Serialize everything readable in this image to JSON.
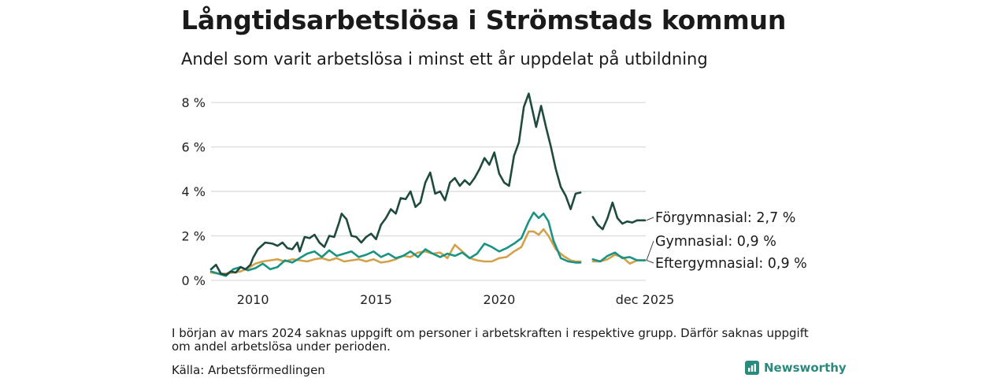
{
  "title": "Långtidsarbetslösa i Strömstads kommun",
  "subtitle": "Andel som varit arbetslösa i minst ett år uppdelat på utbildning",
  "footnote": "I början av mars 2024 saknas uppgift om personer i arbetskraften i respektive grupp. Därför saknas uppgift om andel arbetslösa under perioden.",
  "source": "Källa: Arbetsförmedlingen",
  "brand": "Newsworthy",
  "colors": {
    "forgymnasial": "#1f4a40",
    "gymnasial": "#1a9384",
    "eftergymnasial": "#d3a14a",
    "grid": "#dcdcdc",
    "brand": "#2a8a7c"
  },
  "chart_data": {
    "type": "line",
    "xlim": [
      2008.3,
      2025.95
    ],
    "ylim": [
      0,
      8.5
    ],
    "yticks": [
      0,
      2,
      4,
      6,
      8
    ],
    "ytick_labels": [
      "0 %",
      "2 %",
      "4 %",
      "6 %",
      "8 %"
    ],
    "xticks": [
      2010,
      2015,
      2020,
      2025.92
    ],
    "xtick_labels": [
      "2010",
      "2015",
      "2020",
      "dec 2025"
    ],
    "grid": true,
    "series": [
      {
        "name": "Förgymnasial",
        "label": "Förgymnasial: 2,7 %",
        "color": "#1f4a40",
        "points": [
          [
            2008.3,
            0.5
          ],
          [
            2008.5,
            0.7
          ],
          [
            2008.7,
            0.3
          ],
          [
            2008.9,
            0.25
          ],
          [
            2009.1,
            0.4
          ],
          [
            2009.3,
            0.35
          ],
          [
            2009.5,
            0.6
          ],
          [
            2009.7,
            0.5
          ],
          [
            2009.9,
            0.7
          ],
          [
            2010.0,
            1.0
          ],
          [
            2010.2,
            1.4
          ],
          [
            2010.5,
            1.7
          ],
          [
            2010.8,
            1.65
          ],
          [
            2011.0,
            1.55
          ],
          [
            2011.2,
            1.7
          ],
          [
            2011.4,
            1.45
          ],
          [
            2011.6,
            1.4
          ],
          [
            2011.8,
            1.7
          ],
          [
            2011.9,
            1.3
          ],
          [
            2012.1,
            1.95
          ],
          [
            2012.3,
            1.9
          ],
          [
            2012.5,
            2.05
          ],
          [
            2012.7,
            1.7
          ],
          [
            2012.9,
            1.5
          ],
          [
            2013.1,
            2.0
          ],
          [
            2013.3,
            1.95
          ],
          [
            2013.5,
            2.6
          ],
          [
            2013.6,
            3.0
          ],
          [
            2013.8,
            2.75
          ],
          [
            2014.0,
            2.0
          ],
          [
            2014.2,
            1.95
          ],
          [
            2014.4,
            1.7
          ],
          [
            2014.6,
            1.95
          ],
          [
            2014.8,
            2.1
          ],
          [
            2015.0,
            1.85
          ],
          [
            2015.2,
            2.5
          ],
          [
            2015.4,
            2.8
          ],
          [
            2015.6,
            3.2
          ],
          [
            2015.8,
            3.0
          ],
          [
            2016.0,
            3.7
          ],
          [
            2016.2,
            3.65
          ],
          [
            2016.4,
            4.0
          ],
          [
            2016.6,
            3.3
          ],
          [
            2016.8,
            3.5
          ],
          [
            2017.0,
            4.4
          ],
          [
            2017.2,
            4.85
          ],
          [
            2017.4,
            3.9
          ],
          [
            2017.6,
            4.0
          ],
          [
            2017.8,
            3.6
          ],
          [
            2018.0,
            4.4
          ],
          [
            2018.2,
            4.6
          ],
          [
            2018.4,
            4.25
          ],
          [
            2018.6,
            4.5
          ],
          [
            2018.8,
            4.3
          ],
          [
            2019.0,
            4.6
          ],
          [
            2019.2,
            5.0
          ],
          [
            2019.4,
            5.5
          ],
          [
            2019.6,
            5.2
          ],
          [
            2019.8,
            5.75
          ],
          [
            2020.0,
            4.8
          ],
          [
            2020.2,
            4.4
          ],
          [
            2020.4,
            4.25
          ],
          [
            2020.6,
            5.6
          ],
          [
            2020.8,
            6.2
          ],
          [
            2021.0,
            7.8
          ],
          [
            2021.2,
            8.4
          ],
          [
            2021.4,
            7.4
          ],
          [
            2021.5,
            6.9
          ],
          [
            2021.7,
            7.85
          ],
          [
            2021.9,
            6.9
          ],
          [
            2022.1,
            6.0
          ],
          [
            2022.3,
            5.0
          ],
          [
            2022.5,
            4.2
          ],
          [
            2022.7,
            3.8
          ],
          [
            2022.9,
            3.2
          ],
          [
            2023.1,
            3.9
          ],
          [
            2023.3,
            3.95
          ],
          null,
          [
            2023.8,
            2.85
          ],
          [
            2024.0,
            2.5
          ],
          [
            2024.2,
            2.3
          ],
          [
            2024.4,
            2.8
          ],
          [
            2024.6,
            3.5
          ],
          [
            2024.8,
            2.8
          ],
          [
            2025.0,
            2.55
          ],
          [
            2025.2,
            2.65
          ],
          [
            2025.4,
            2.6
          ],
          [
            2025.6,
            2.7
          ],
          [
            2025.92,
            2.7
          ]
        ]
      },
      {
        "name": "Gymnasial",
        "label": "Gymnasial: 0,9 %",
        "color": "#1a9384",
        "points": [
          [
            2008.3,
            0.4
          ],
          [
            2008.6,
            0.3
          ],
          [
            2008.9,
            0.2
          ],
          [
            2009.2,
            0.5
          ],
          [
            2009.5,
            0.6
          ],
          [
            2009.8,
            0.45
          ],
          [
            2010.1,
            0.55
          ],
          [
            2010.4,
            0.75
          ],
          [
            2010.7,
            0.5
          ],
          [
            2011.0,
            0.6
          ],
          [
            2011.3,
            0.9
          ],
          [
            2011.6,
            0.8
          ],
          [
            2011.9,
            1.0
          ],
          [
            2012.2,
            1.2
          ],
          [
            2012.5,
            1.3
          ],
          [
            2012.8,
            1.05
          ],
          [
            2013.1,
            1.35
          ],
          [
            2013.4,
            1.1
          ],
          [
            2013.7,
            1.2
          ],
          [
            2014.0,
            1.3
          ],
          [
            2014.3,
            1.05
          ],
          [
            2014.6,
            1.15
          ],
          [
            2014.9,
            1.3
          ],
          [
            2015.2,
            1.05
          ],
          [
            2015.5,
            1.2
          ],
          [
            2015.8,
            1.0
          ],
          [
            2016.1,
            1.1
          ],
          [
            2016.4,
            1.3
          ],
          [
            2016.7,
            1.05
          ],
          [
            2017.0,
            1.4
          ],
          [
            2017.3,
            1.2
          ],
          [
            2017.6,
            1.05
          ],
          [
            2017.9,
            1.2
          ],
          [
            2018.2,
            1.1
          ],
          [
            2018.5,
            1.25
          ],
          [
            2018.8,
            1.0
          ],
          [
            2019.1,
            1.2
          ],
          [
            2019.4,
            1.65
          ],
          [
            2019.7,
            1.5
          ],
          [
            2020.0,
            1.3
          ],
          [
            2020.3,
            1.45
          ],
          [
            2020.6,
            1.65
          ],
          [
            2020.9,
            1.9
          ],
          [
            2021.2,
            2.65
          ],
          [
            2021.4,
            3.05
          ],
          [
            2021.6,
            2.8
          ],
          [
            2021.8,
            3.0
          ],
          [
            2022.0,
            2.65
          ],
          [
            2022.2,
            1.8
          ],
          [
            2022.5,
            1.0
          ],
          [
            2022.8,
            0.85
          ],
          [
            2023.1,
            0.8
          ],
          [
            2023.3,
            0.8
          ],
          null,
          [
            2023.8,
            0.95
          ],
          [
            2024.1,
            0.85
          ],
          [
            2024.4,
            1.1
          ],
          [
            2024.7,
            1.25
          ],
          [
            2025.0,
            1.0
          ],
          [
            2025.3,
            1.05
          ],
          [
            2025.6,
            0.9
          ],
          [
            2025.92,
            0.9
          ]
        ]
      },
      {
        "name": "Eftergymnasial",
        "label": "Eftergymnasial: 0,9 %",
        "color": "#d3a14a",
        "points": [
          [
            2008.3,
            0.35
          ],
          [
            2008.6,
            0.3
          ],
          [
            2008.9,
            0.3
          ],
          [
            2009.2,
            0.35
          ],
          [
            2009.5,
            0.4
          ],
          [
            2009.8,
            0.55
          ],
          [
            2010.1,
            0.75
          ],
          [
            2010.4,
            0.85
          ],
          [
            2010.7,
            0.9
          ],
          [
            2011.0,
            0.95
          ],
          [
            2011.3,
            0.85
          ],
          [
            2011.6,
            0.95
          ],
          [
            2011.9,
            0.9
          ],
          [
            2012.2,
            0.85
          ],
          [
            2012.5,
            0.95
          ],
          [
            2012.8,
            1.0
          ],
          [
            2013.1,
            0.9
          ],
          [
            2013.4,
            1.0
          ],
          [
            2013.7,
            0.85
          ],
          [
            2014.0,
            0.9
          ],
          [
            2014.3,
            0.95
          ],
          [
            2014.6,
            0.85
          ],
          [
            2014.9,
            0.95
          ],
          [
            2015.2,
            0.8
          ],
          [
            2015.5,
            0.85
          ],
          [
            2015.8,
            0.95
          ],
          [
            2016.1,
            1.1
          ],
          [
            2016.4,
            1.05
          ],
          [
            2016.7,
            1.25
          ],
          [
            2017.0,
            1.3
          ],
          [
            2017.3,
            1.2
          ],
          [
            2017.6,
            1.25
          ],
          [
            2017.9,
            1.0
          ],
          [
            2018.2,
            1.6
          ],
          [
            2018.5,
            1.3
          ],
          [
            2018.8,
            1.0
          ],
          [
            2019.1,
            0.9
          ],
          [
            2019.4,
            0.85
          ],
          [
            2019.7,
            0.85
          ],
          [
            2020.0,
            1.0
          ],
          [
            2020.3,
            1.05
          ],
          [
            2020.6,
            1.3
          ],
          [
            2020.9,
            1.5
          ],
          [
            2021.2,
            2.2
          ],
          [
            2021.4,
            2.2
          ],
          [
            2021.6,
            2.05
          ],
          [
            2021.8,
            2.3
          ],
          [
            2022.0,
            2.0
          ],
          [
            2022.3,
            1.4
          ],
          [
            2022.6,
            1.1
          ],
          [
            2022.9,
            0.9
          ],
          [
            2023.1,
            0.85
          ],
          [
            2023.3,
            0.85
          ],
          null,
          [
            2023.8,
            0.85
          ],
          [
            2024.1,
            0.85
          ],
          [
            2024.4,
            0.95
          ],
          [
            2024.7,
            1.15
          ],
          [
            2025.0,
            1.05
          ],
          [
            2025.3,
            0.75
          ],
          [
            2025.6,
            0.9
          ],
          [
            2025.92,
            0.9
          ]
        ]
      }
    ]
  }
}
